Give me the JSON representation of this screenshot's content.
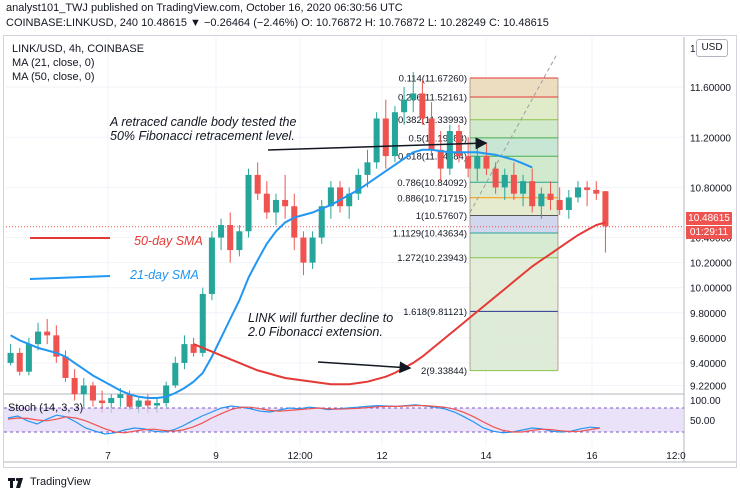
{
  "header": {
    "line1": "analyst101_TWJ published on TradingView.com, October 16, 2020 06:30:56 UTC",
    "line2": "COINBASE:LINKUSD, 240  10.48615  ▼  −0.26464 (−2.46%)  O: 10.76872  H: 10.76872  L: 10.28249  C: 10.48615"
  },
  "legend": {
    "symbol": "LINK/USD, 4h, COINBASE",
    "ma21": "MA (21, close, 0)",
    "ma50": "MA (50, close, 0)"
  },
  "currency_button": "USD",
  "price_tag": "10.48615",
  "timer_tag": "01:29:11",
  "annotations": {
    "retrace_line1": "A retraced candle body tested the",
    "retrace_line2": "50% Fibonacci retracement level.",
    "decline_line1": "LINK will further decline to",
    "decline_line2": "2.0 Fibonacci extension.",
    "sma50": "50-day SMA",
    "sma21": "21-day SMA"
  },
  "stoch": {
    "label": "Stoch (14, 3, 3)",
    "ticks": [
      "100.00",
      "50.00"
    ]
  },
  "footer": {
    "brand": "TradingView"
  },
  "colors": {
    "up": "#26a69a",
    "down": "#ef5350",
    "ma21": "#2196f3",
    "ma50": "#e53935",
    "stochK": "#2196f3",
    "stochD": "#ef5350",
    "stochBand": "#7e57c2"
  },
  "chart_data": {
    "type": "candlestick",
    "title": "LINK/USD, 4h, COINBASE",
    "ylim": [
      9.16,
      12.0
    ],
    "y_ticks": [
      "11.60000",
      "11.20000",
      "10.80000",
      "10.40000",
      "10.20000",
      "10.00000",
      "9.80000",
      "9.60000",
      "9.40000",
      "9.22000"
    ],
    "x_ticks": [
      "7",
      "9",
      "12:00",
      "12",
      "14",
      "16",
      "12:0"
    ],
    "candles": [
      [
        9.4,
        9.55,
        9.38,
        9.48
      ],
      [
        9.48,
        9.52,
        9.3,
        9.33
      ],
      [
        9.33,
        9.6,
        9.3,
        9.55
      ],
      [
        9.55,
        9.72,
        9.5,
        9.65
      ],
      [
        9.65,
        9.75,
        9.55,
        9.62
      ],
      [
        9.62,
        9.7,
        9.4,
        9.45
      ],
      [
        9.45,
        9.5,
        9.25,
        9.28
      ],
      [
        9.28,
        9.35,
        9.1,
        9.15
      ],
      [
        9.15,
        9.28,
        9.05,
        9.22
      ],
      [
        9.22,
        9.25,
        9.05,
        9.1
      ],
      [
        9.1,
        9.18,
        9.0,
        9.08
      ],
      [
        9.08,
        9.15,
        9.0,
        9.12
      ],
      [
        9.12,
        9.2,
        9.05,
        9.15
      ],
      [
        9.15,
        9.18,
        9.02,
        9.05
      ],
      [
        9.05,
        9.12,
        9.0,
        9.1
      ],
      [
        9.1,
        9.15,
        9.0,
        9.06
      ],
      [
        9.06,
        9.12,
        9.0,
        9.08
      ],
      [
        9.08,
        9.25,
        9.05,
        9.22
      ],
      [
        9.22,
        9.45,
        9.2,
        9.4
      ],
      [
        9.4,
        9.62,
        9.35,
        9.55
      ],
      [
        9.55,
        9.6,
        9.45,
        9.48
      ],
      [
        9.48,
        10.0,
        9.45,
        9.95
      ],
      [
        9.95,
        10.45,
        9.9,
        10.4
      ],
      [
        10.4,
        10.55,
        10.3,
        10.5
      ],
      [
        10.5,
        10.6,
        10.2,
        10.3
      ],
      [
        10.3,
        10.5,
        10.25,
        10.45
      ],
      [
        10.45,
        10.95,
        10.4,
        10.9
      ],
      [
        10.9,
        11.0,
        10.7,
        10.75
      ],
      [
        10.75,
        10.85,
        10.55,
        10.6
      ],
      [
        10.6,
        10.75,
        10.5,
        10.7
      ],
      [
        10.7,
        10.9,
        10.55,
        10.65
      ],
      [
        10.65,
        10.75,
        10.3,
        10.4
      ],
      [
        10.4,
        10.45,
        10.1,
        10.2
      ],
      [
        10.2,
        10.45,
        10.15,
        10.4
      ],
      [
        10.4,
        10.7,
        10.35,
        10.65
      ],
      [
        10.65,
        10.85,
        10.55,
        10.8
      ],
      [
        10.8,
        10.85,
        10.6,
        10.65
      ],
      [
        10.65,
        10.8,
        10.55,
        10.75
      ],
      [
        10.75,
        10.95,
        10.7,
        10.9
      ],
      [
        10.9,
        11.1,
        10.8,
        11.0
      ],
      [
        11.0,
        11.4,
        10.95,
        11.35
      ],
      [
        11.35,
        11.5,
        10.95,
        11.05
      ],
      [
        11.05,
        11.45,
        11.0,
        11.4
      ],
      [
        11.4,
        11.6,
        11.3,
        11.5
      ],
      [
        11.5,
        11.72,
        11.4,
        11.55
      ],
      [
        11.55,
        11.65,
        11.3,
        11.35
      ],
      [
        11.35,
        11.48,
        11.05,
        11.1
      ],
      [
        11.1,
        11.25,
        10.85,
        10.95
      ],
      [
        10.95,
        11.3,
        10.9,
        11.25
      ],
      [
        11.25,
        11.3,
        11.0,
        11.05
      ],
      [
        11.05,
        11.2,
        10.88,
        10.95
      ],
      [
        10.95,
        11.12,
        10.85,
        11.05
      ],
      [
        11.05,
        11.15,
        10.9,
        10.95
      ],
      [
        10.95,
        11.0,
        10.75,
        10.8
      ],
      [
        10.8,
        10.95,
        10.7,
        10.9
      ],
      [
        10.9,
        11.0,
        10.7,
        10.75
      ],
      [
        10.75,
        10.9,
        10.65,
        10.85
      ],
      [
        10.85,
        10.95,
        10.6,
        10.65
      ],
      [
        10.65,
        10.8,
        10.55,
        10.75
      ],
      [
        10.75,
        10.85,
        10.62,
        10.7
      ],
      [
        10.7,
        10.8,
        10.58,
        10.62
      ],
      [
        10.62,
        10.78,
        10.55,
        10.72
      ],
      [
        10.72,
        10.85,
        10.68,
        10.8
      ],
      [
        10.8,
        10.85,
        10.65,
        10.78
      ],
      [
        10.78,
        10.85,
        10.7,
        10.75
      ],
      [
        10.77,
        10.77,
        10.28,
        10.49
      ]
    ],
    "ma21": [
      9.62,
      9.58,
      9.55,
      9.52,
      9.5,
      9.48,
      9.45,
      9.4,
      9.35,
      9.3,
      9.26,
      9.22,
      9.18,
      9.15,
      9.13,
      9.12,
      9.12,
      9.13,
      9.16,
      9.2,
      9.25,
      9.32,
      9.45,
      9.6,
      9.75,
      9.9,
      10.08,
      10.22,
      10.35,
      10.45,
      10.52,
      10.56,
      10.58,
      10.6,
      10.63,
      10.66,
      10.7,
      10.74,
      10.78,
      10.83,
      10.88,
      10.93,
      10.98,
      11.03,
      11.08,
      11.1,
      11.1,
      11.09,
      11.08,
      11.08,
      11.08,
      11.08,
      11.07,
      11.06,
      11.04,
      11.02,
      10.99,
      10.96
    ],
    "ma50": [
      9.55,
      9.52,
      9.49,
      9.46,
      9.43,
      9.4,
      9.37,
      9.34,
      9.32,
      9.3,
      9.28,
      9.27,
      9.26,
      9.25,
      9.24,
      9.23,
      9.23,
      9.23,
      9.24,
      9.25,
      9.27,
      9.29,
      9.32,
      9.36,
      9.4,
      9.45,
      9.51,
      9.57,
      9.63,
      9.69,
      9.75,
      9.81,
      9.87,
      9.93,
      9.99,
      10.05,
      10.11,
      10.17,
      10.22,
      10.27,
      10.32,
      10.37,
      10.42,
      10.46,
      10.5,
      10.52
    ],
    "fibonacci": [
      {
        "ratio": "0.114",
        "price": "11.67260"
      },
      {
        "ratio": "0.236",
        "price": "11.52161"
      },
      {
        "ratio": "0.382",
        "price": "11.33993"
      },
      {
        "ratio": "0.5",
        "price": "11.19483"
      },
      {
        "ratio": "0.618",
        "price": "11.04884"
      },
      {
        "ratio": "0.786",
        "price": "10.84092"
      },
      {
        "ratio": "0.886",
        "price": "10.71715"
      },
      {
        "ratio": "1",
        "price": "10.57607"
      },
      {
        "ratio": "1.1129",
        "price": "10.43634"
      },
      {
        "ratio": "1.272",
        "price": "10.23943"
      },
      {
        "ratio": "1.618",
        "price": "9.81121"
      },
      {
        "ratio": "2",
        "price": "9.33844"
      }
    ],
    "stoch": {
      "ylim": [
        0,
        100
      ],
      "k": [
        55,
        60,
        48,
        40,
        52,
        62,
        58,
        45,
        30,
        22,
        15,
        18,
        25,
        30,
        28,
        22,
        20,
        25,
        35,
        48,
        60,
        70,
        80,
        85,
        82,
        78,
        72,
        70,
        75,
        80,
        78,
        82,
        80,
        76,
        78,
        80,
        82,
        84,
        86,
        85,
        84,
        86,
        88,
        85,
        82,
        78,
        70,
        58,
        45,
        30,
        22,
        18,
        20,
        25,
        30,
        28,
        22,
        20,
        22,
        28,
        32,
        30
      ],
      "d": [
        52,
        55,
        54,
        50,
        48,
        52,
        58,
        55,
        48,
        38,
        28,
        20,
        18,
        22,
        26,
        27,
        24,
        22,
        25,
        32,
        42,
        55,
        66,
        76,
        82,
        82,
        78,
        74,
        72,
        74,
        76,
        78,
        80,
        78,
        77,
        78,
        79,
        81,
        83,
        84,
        84,
        85,
        86,
        86,
        84,
        82,
        77,
        69,
        58,
        45,
        33,
        24,
        20,
        20,
        24,
        27,
        26,
        23,
        21,
        22,
        26,
        30
      ]
    }
  }
}
